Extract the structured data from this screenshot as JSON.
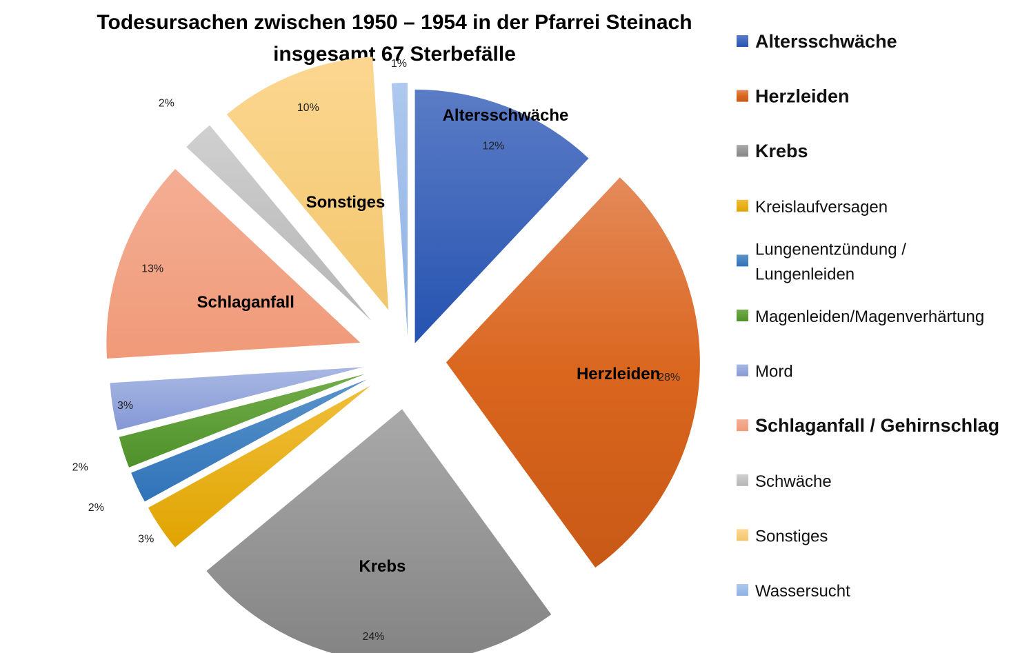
{
  "chart_data": {
    "type": "pie",
    "title": "Todesursachen zwischen 1950 – 1954 in der Pfarrei Steinach",
    "subtitle": "insgesamt 67 Sterbefälle",
    "legend_position": "right",
    "slices": [
      {
        "name": "Altersschwäche",
        "percent_label": "12%",
        "value": 12,
        "color": "#2F5BB4",
        "label": "Altersschwäche"
      },
      {
        "name": "Herzleiden",
        "percent_label": "28%",
        "value": 28,
        "color": "#D9641C",
        "label": "Herzleiden"
      },
      {
        "name": "Krebs",
        "percent_label": "24%",
        "value": 24,
        "color": "#8F8F8F",
        "label": "Krebs"
      },
      {
        "name": "Kreislaufversagen",
        "percent_label": "3%",
        "value": 3,
        "color": "#E6AE0E"
      },
      {
        "name": "Lungenentzündung / Lungenleiden",
        "percent_label": "2%",
        "value": 2,
        "color": "#3D7FC0"
      },
      {
        "name": "Magenleiden/Magenverhärtung",
        "percent_label": "2%",
        "value": 2,
        "color": "#5E9E36"
      },
      {
        "name": "Mord",
        "percent_label": "3%",
        "value": 3,
        "color": "#95A7DD"
      },
      {
        "name": "Schlaganfall / Gehirnschlag",
        "percent_label": "13%",
        "value": 13,
        "color": "#F2A183",
        "label": "Schlaganfall"
      },
      {
        "name": "Schwäche",
        "percent_label": "2%",
        "value": 2,
        "color": "#C3C3C3"
      },
      {
        "name": "Sonstiges",
        "percent_label": "10%",
        "value": 10,
        "color": "#FBCF7F",
        "label": "Sonstiges"
      },
      {
        "name": "Wassersucht",
        "percent_label": "1%",
        "value": 1,
        "color": "#9DBDE9"
      }
    ],
    "legend": [
      {
        "text": "Altersschwäche",
        "bold": true
      },
      {
        "text": "Herzleiden",
        "bold": true
      },
      {
        "text": "Krebs",
        "bold": true
      },
      {
        "text": "Kreislaufversagen",
        "bold": false
      },
      {
        "text_lines": [
          "Lungenentzündung /",
          "Lungenleiden"
        ],
        "bold": false
      },
      {
        "text": "Magenleiden/Magenverhärtung",
        "bold": false
      },
      {
        "text": "Mord",
        "bold": false
      },
      {
        "text": "Schlaganfall / Gehirnschlag",
        "bold": true
      },
      {
        "text": "Schwäche",
        "bold": false
      },
      {
        "text": "Sonstiges",
        "bold": false
      },
      {
        "text": "Wassersucht",
        "bold": false
      }
    ]
  }
}
